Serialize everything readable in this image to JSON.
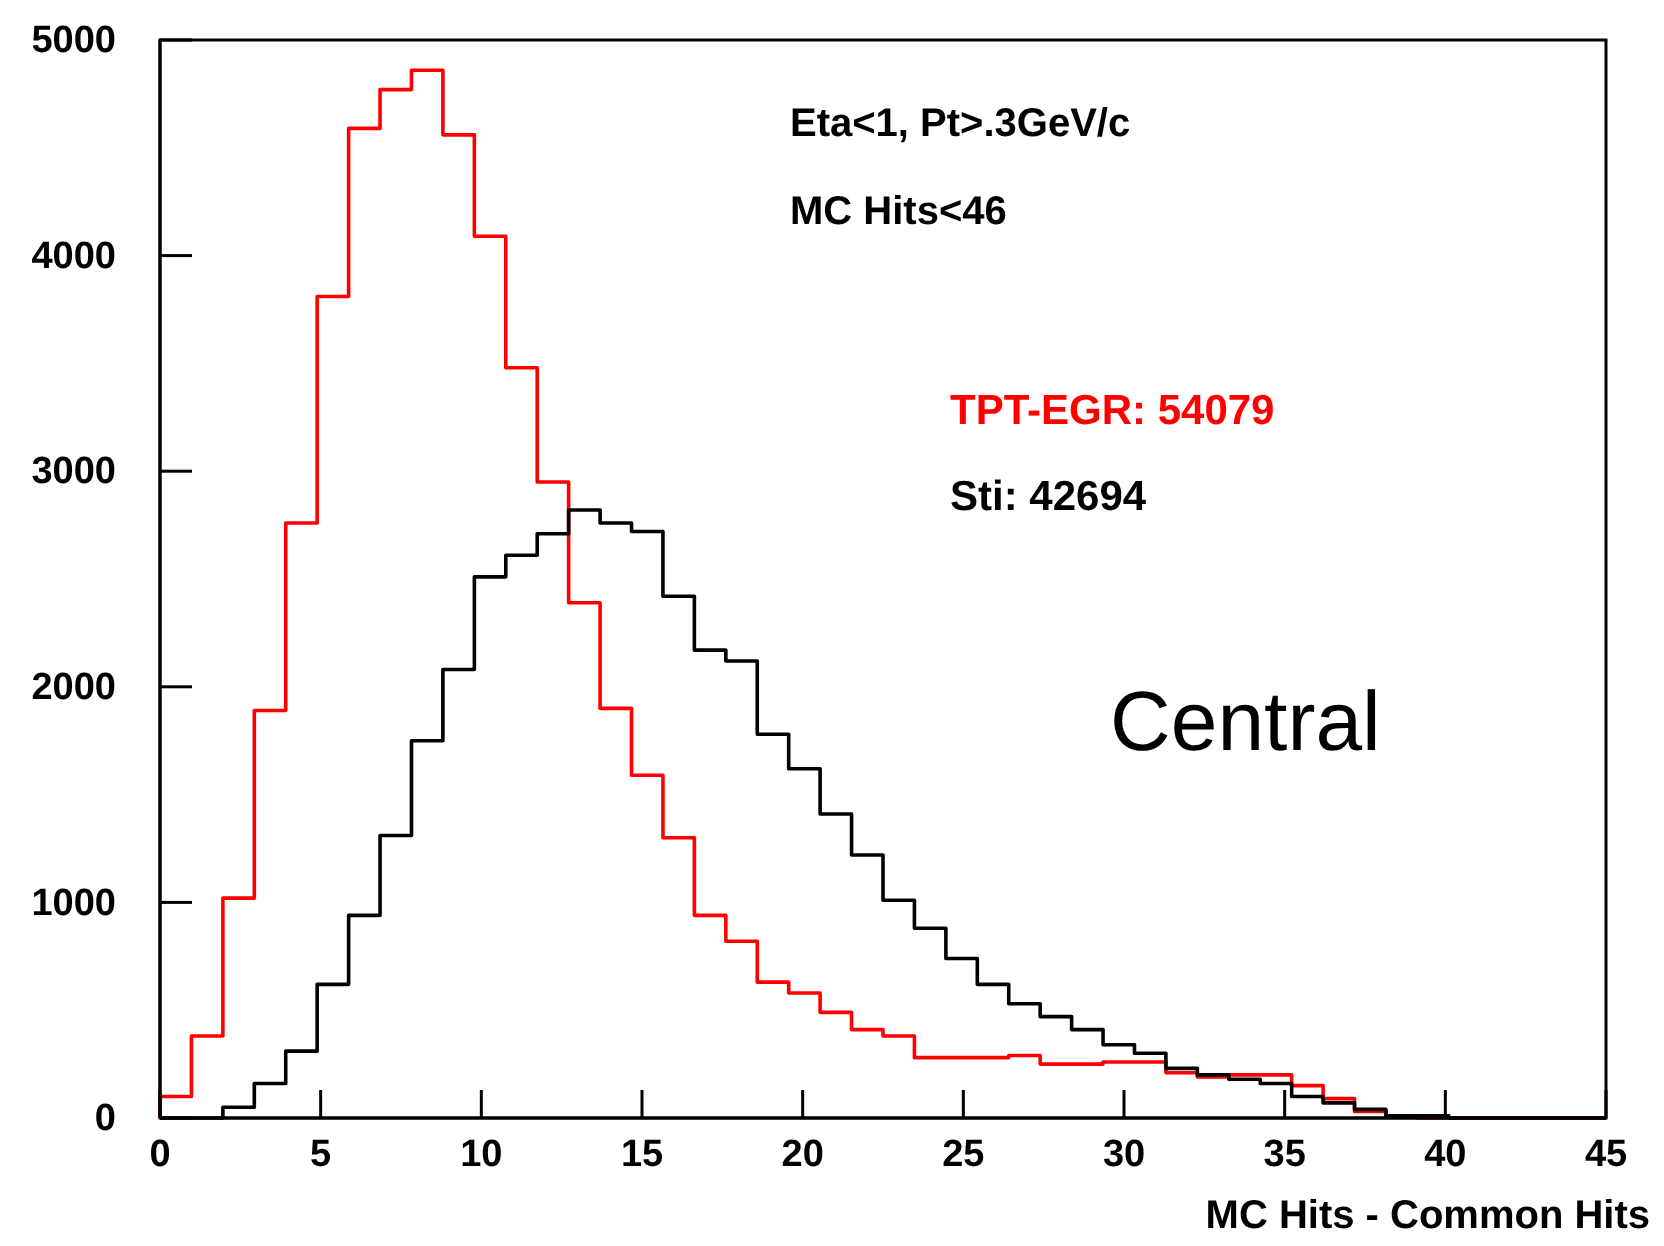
{
  "chart_data": {
    "type": "histogram",
    "xlabel": "MC Hits - Common Hits",
    "bins": [
      0,
      0.978,
      1.957,
      2.935,
      3.913,
      4.891,
      5.87,
      6.848,
      7.826,
      8.804,
      9.783,
      10.761,
      11.739,
      12.717,
      13.696,
      14.674,
      15.652,
      16.63,
      17.609,
      18.587,
      19.565,
      20.543,
      21.522,
      22.5,
      23.478,
      24.457,
      25.435,
      26.413,
      27.391,
      28.37,
      29.348,
      30.326,
      31.304,
      32.283,
      33.261,
      34.239,
      35.217,
      36.196,
      37.174,
      38.152,
      39.13,
      40.109,
      41.087,
      42.065,
      43.043,
      44.022,
      45
    ],
    "series": [
      {
        "name": "TPT-EGR: 54079",
        "color": "#ff0000",
        "values": [
          100,
          380,
          1020,
          1890,
          2760,
          3810,
          4590,
          4770,
          4860,
          4560,
          4090,
          3480,
          2950,
          2390,
          1900,
          1590,
          1300,
          940,
          820,
          630,
          580,
          490,
          410,
          380,
          280,
          280,
          280,
          290,
          250,
          250,
          260,
          260,
          210,
          190,
          200,
          200,
          150,
          90,
          30,
          10,
          0,
          0,
          0,
          0,
          0,
          0
        ]
      },
      {
        "name": "Sti: 42694",
        "color": "#000000",
        "values": [
          0,
          0,
          50,
          160,
          310,
          620,
          940,
          1310,
          1750,
          2080,
          2510,
          2610,
          2710,
          2820,
          2760,
          2720,
          2420,
          2170,
          2120,
          1780,
          1620,
          1410,
          1220,
          1010,
          880,
          740,
          620,
          530,
          470,
          410,
          340,
          300,
          230,
          200,
          180,
          160,
          100,
          70,
          40,
          10,
          10,
          0,
          0,
          0,
          0,
          0
        ]
      }
    ],
    "xlim": [
      0,
      45
    ],
    "xticks": [
      0,
      5,
      10,
      15,
      20,
      25,
      30,
      35,
      40,
      45
    ],
    "ylim": [
      0,
      5000
    ],
    "yticks": [
      0,
      1000,
      2000,
      3000,
      4000,
      5000
    ],
    "legend": "top right",
    "grid": false,
    "annotations": [
      "Eta<1, Pt>.3GeV/c",
      "MC Hits<46",
      "Central"
    ]
  }
}
